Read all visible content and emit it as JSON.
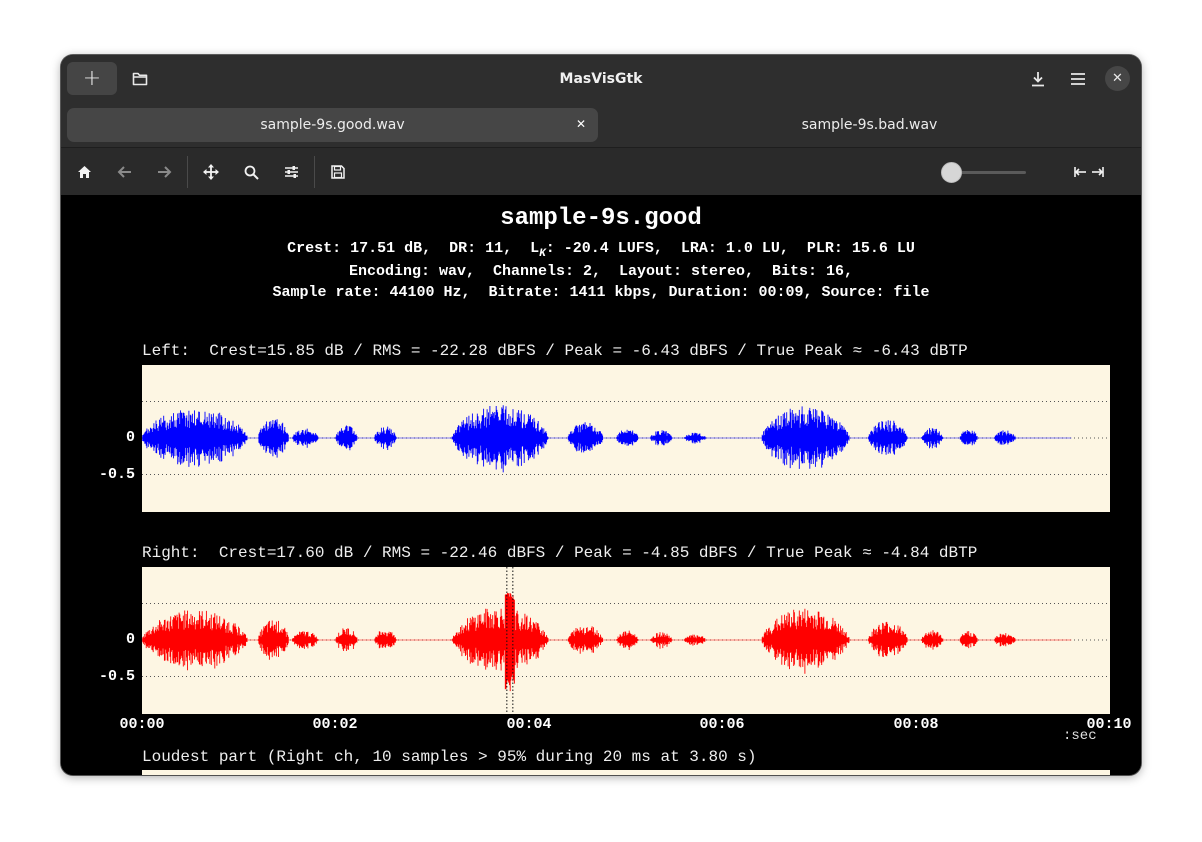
{
  "app": {
    "title": "MasVisGtk",
    "new_glyph": "+",
    "close_glyph": "✕"
  },
  "tabs": [
    {
      "label": "sample-9s.good.wav",
      "active": true,
      "close_glyph": "✕"
    },
    {
      "label": "sample-9s.bad.wav",
      "active": false
    }
  ],
  "toolbar": {
    "icons": [
      "home-icon",
      "back-icon",
      "forward-icon",
      "pan-icon",
      "zoom-icon",
      "configure-icon",
      "save-icon",
      "zoom-slider",
      "fit-width-icon"
    ],
    "zoom_slider_value": 0.0
  },
  "report": {
    "title": "sample-9s.good",
    "line1_pre": "Crest: 17.51 dB,  DR: 11,  L",
    "line1_sub": "K",
    "line1_post": ": -20.4 LUFS,  LRA: 1.0 LU,  PLR: 15.6 LU",
    "line2": "Encoding: wav,  Channels: 2,  Layout: stereo,  Bits: 16,",
    "line3": "Sample rate: 44100 Hz,  Bitrate: 1411 kbps, Duration: 00:09, Source: file"
  },
  "chart_data": {
    "type": "line",
    "title": "sample-9s.good",
    "xlabel": ":sec",
    "xlim": [
      0,
      10
    ],
    "ylim": [
      -1,
      1
    ],
    "x_tick_labels": [
      "00:00",
      "00:02",
      "00:04",
      "00:06",
      "00:08",
      "00:10"
    ],
    "y_tick_labels": [
      "0",
      "-0.5"
    ],
    "unit_label": ":sec",
    "loudest_label": "Loudest part (Right ch, 10 samples > 95% during 20 ms at 3.80 s)",
    "loudest_time": 3.8,
    "series": [
      {
        "name": "Left",
        "color": "#0000ff",
        "label": "Left:  Crest=15.85 dB / RMS = -22.28 dBFS / Peak = -6.43 dBFS / True Peak ≈ -6.43 dBTP",
        "peak_dbfs": -6.43
      },
      {
        "name": "Right",
        "color": "#ff0000",
        "label": "Right:  Crest=17.60 dB / RMS = -22.46 dBFS / Peak = -4.85 dBFS / True Peak ≈ -4.84 dBTP",
        "peak_dbfs": -4.85
      }
    ],
    "bursts": [
      {
        "t0": 0.0,
        "t1": 1.2,
        "amp": 0.38
      },
      {
        "t0": 1.2,
        "t1": 1.55,
        "amp": 0.26
      },
      {
        "t0": 1.55,
        "t1": 1.85,
        "amp": 0.12
      },
      {
        "t0": 2.0,
        "t1": 2.25,
        "amp": 0.16
      },
      {
        "t0": 2.4,
        "t1": 2.65,
        "amp": 0.15
      },
      {
        "t0": 3.2,
        "t1": 4.3,
        "amp": 0.42
      },
      {
        "t0": 4.4,
        "t1": 4.8,
        "amp": 0.2
      },
      {
        "t0": 4.9,
        "t1": 5.15,
        "amp": 0.12
      },
      {
        "t0": 5.25,
        "t1": 5.5,
        "amp": 0.1
      },
      {
        "t0": 5.6,
        "t1": 5.85,
        "amp": 0.07
      },
      {
        "t0": 6.4,
        "t1": 7.4,
        "amp": 0.4
      },
      {
        "t0": 7.5,
        "t1": 7.95,
        "amp": 0.24
      },
      {
        "t0": 8.05,
        "t1": 8.3,
        "amp": 0.13
      },
      {
        "t0": 8.45,
        "t1": 8.65,
        "amp": 0.12
      },
      {
        "t0": 8.8,
        "t1": 9.05,
        "amp": 0.1
      }
    ],
    "end_time": 9.6
  }
}
